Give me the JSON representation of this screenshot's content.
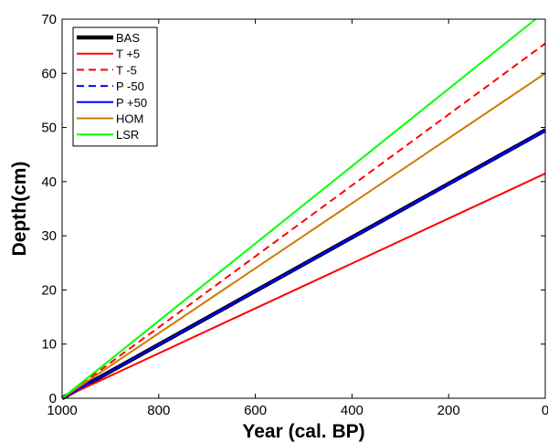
{
  "chart_data": {
    "type": "line",
    "title": "",
    "xlabel": "Year (cal. BP)",
    "ylabel": "Depth(cm)",
    "xlim": [
      1000,
      0
    ],
    "ylim": [
      0,
      70
    ],
    "x_reversed": true,
    "xticks": [
      1000,
      800,
      600,
      400,
      200,
      0
    ],
    "yticks": [
      0,
      10,
      20,
      30,
      40,
      50,
      60,
      70
    ],
    "grid": false,
    "legend_position": "top-left",
    "series": [
      {
        "name": "BAS",
        "color": "#000000",
        "dash": "solid",
        "width": "thick",
        "x": [
          1000,
          0
        ],
        "y": [
          0,
          49.5
        ]
      },
      {
        "name": "T +5",
        "color": "#ff0000",
        "dash": "solid",
        "width": "normal",
        "x": [
          1000,
          0
        ],
        "y": [
          0,
          41.5
        ]
      },
      {
        "name": "T -5",
        "color": "#ff0000",
        "dash": "dashed",
        "width": "normal",
        "x": [
          1000,
          0
        ],
        "y": [
          0,
          65.5
        ]
      },
      {
        "name": "P -50",
        "color": "#0000ff",
        "dash": "dashed",
        "width": "normal",
        "x": [
          1000,
          0
        ],
        "y": [
          0,
          49.3
        ]
      },
      {
        "name": "P +50",
        "color": "#0000ff",
        "dash": "solid",
        "width": "normal",
        "x": [
          1000,
          0
        ],
        "y": [
          0,
          49.5
        ]
      },
      {
        "name": "HOM",
        "color": "#cc7a00",
        "dash": "solid",
        "width": "normal",
        "x": [
          1000,
          0
        ],
        "y": [
          0,
          60.0
        ]
      },
      {
        "name": "LSR",
        "color": "#00ff00",
        "dash": "solid",
        "width": "normal",
        "x": [
          1000,
          20
        ],
        "y": [
          0,
          70.0
        ]
      }
    ]
  }
}
